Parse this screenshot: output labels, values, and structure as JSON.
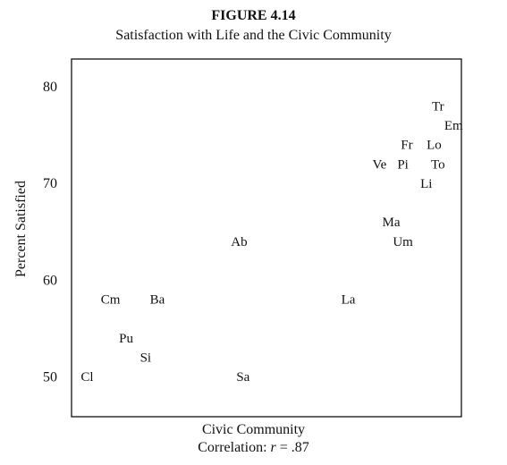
{
  "figure_label": "FIGURE 4.14",
  "chart_data": {
    "type": "scatter",
    "title": "Satisfaction with Life and the Civic Community",
    "xlabel": "Civic Community",
    "ylabel": "Percent Satisfied",
    "annotation": {
      "prefix": "Correlation: ",
      "symbol": "r",
      "suffix": " = .87"
    },
    "x_range": [
      0,
      100
    ],
    "ylim": [
      46,
      83
    ],
    "y_ticks": [
      50,
      60,
      70,
      80
    ],
    "grid": false,
    "points": [
      {
        "label": "Tr",
        "x": 94,
        "y": 78
      },
      {
        "label": "Em",
        "x": 98,
        "y": 76
      },
      {
        "label": "Fr",
        "x": 86,
        "y": 74
      },
      {
        "label": "Lo",
        "x": 93,
        "y": 74
      },
      {
        "label": "Ve",
        "x": 79,
        "y": 72
      },
      {
        "label": "Pi",
        "x": 85,
        "y": 72
      },
      {
        "label": "To",
        "x": 94,
        "y": 72
      },
      {
        "label": "Li",
        "x": 91,
        "y": 70
      },
      {
        "label": "Ma",
        "x": 82,
        "y": 66
      },
      {
        "label": "Um",
        "x": 85,
        "y": 64
      },
      {
        "label": "Ab",
        "x": 43,
        "y": 64
      },
      {
        "label": "La",
        "x": 71,
        "y": 58
      },
      {
        "label": "Cm",
        "x": 10,
        "y": 58
      },
      {
        "label": "Ba",
        "x": 22,
        "y": 58
      },
      {
        "label": "Pu",
        "x": 14,
        "y": 54
      },
      {
        "label": "Si",
        "x": 19,
        "y": 52
      },
      {
        "label": "Cl",
        "x": 4,
        "y": 50
      },
      {
        "label": "Sa",
        "x": 44,
        "y": 50
      }
    ]
  }
}
